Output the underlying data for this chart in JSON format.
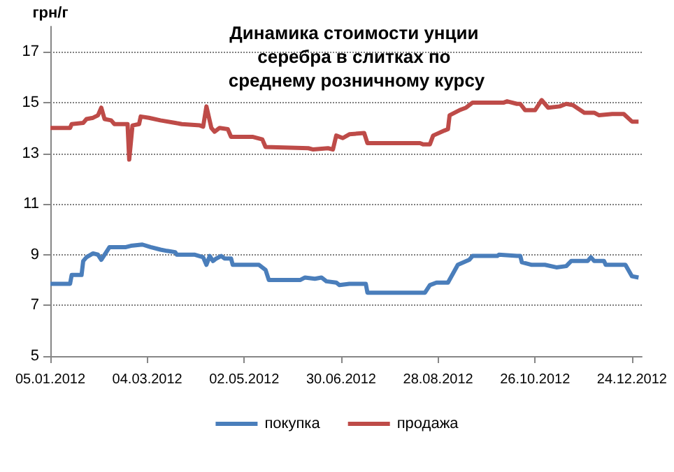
{
  "chart_data": {
    "type": "line",
    "title": "Динамика стоимости унции серебра в слитках по среднему розничному курсу",
    "ylabel": "грн/г",
    "xlim": [
      "2012-01-05",
      "2012-12-30"
    ],
    "xticks": [
      {
        "value": "2012-01-05",
        "label": "05.01.2012"
      },
      {
        "value": "2012-03-04",
        "label": "04.03.2012"
      },
      {
        "value": "2012-05-02",
        "label": "02.05.2012"
      },
      {
        "value": "2012-06-30",
        "label": "30.06.2012"
      },
      {
        "value": "2012-08-28",
        "label": "28.08.2012"
      },
      {
        "value": "2012-10-26",
        "label": "26.10.2012"
      },
      {
        "value": "2012-12-24",
        "label": "24.12.2012"
      }
    ],
    "ylim": [
      5,
      18
    ],
    "yticks": [
      5,
      7,
      9,
      11,
      13,
      15,
      17
    ],
    "grid": "y",
    "legend": "bottom",
    "marker": "none",
    "line_style": "solid",
    "series": [
      {
        "name": "покупка",
        "color": "#4a7ebb",
        "x": [
          "2012-01-05",
          "2012-01-17",
          "2012-01-18",
          "2012-01-24",
          "2012-01-25",
          "2012-01-27",
          "2012-01-31",
          "2012-02-03",
          "2012-02-05",
          "2012-02-09",
          "2012-02-10",
          "2012-02-20",
          "2012-02-23",
          "2012-03-01",
          "2012-03-06",
          "2012-03-12",
          "2012-03-16",
          "2012-03-21",
          "2012-03-22",
          "2012-04-02",
          "2012-04-07",
          "2012-04-09",
          "2012-04-11",
          "2012-04-13",
          "2012-04-15",
          "2012-04-18",
          "2012-04-20",
          "2012-04-24",
          "2012-04-25",
          "2012-05-11",
          "2012-05-15",
          "2012-05-17",
          "2012-06-05",
          "2012-06-08",
          "2012-06-14",
          "2012-06-18",
          "2012-06-21",
          "2012-06-27",
          "2012-06-29",
          "2012-07-05",
          "2012-07-15",
          "2012-07-16",
          "2012-08-20",
          "2012-08-23",
          "2012-08-27",
          "2012-09-03",
          "2012-09-09",
          "2012-09-16",
          "2012-09-18",
          "2012-10-03",
          "2012-10-04",
          "2012-10-15",
          "2012-10-17",
          "2012-10-18",
          "2012-10-24",
          "2012-11-01",
          "2012-11-08",
          "2012-11-14",
          "2012-11-17",
          "2012-11-27",
          "2012-11-29",
          "2012-12-01",
          "2012-12-07",
          "2012-12-08",
          "2012-12-20",
          "2012-12-24",
          "2012-12-28"
        ],
        "values": [
          7.85,
          7.85,
          8.2,
          8.2,
          8.75,
          8.9,
          9.05,
          9.0,
          8.8,
          9.2,
          9.3,
          9.3,
          9.35,
          9.4,
          9.3,
          9.2,
          9.15,
          9.1,
          9.0,
          9.0,
          8.9,
          8.6,
          8.95,
          8.75,
          8.85,
          8.95,
          8.85,
          8.85,
          8.6,
          8.6,
          8.4,
          8.0,
          8.0,
          8.1,
          8.05,
          8.1,
          7.95,
          7.9,
          7.8,
          7.85,
          7.85,
          7.5,
          7.5,
          7.8,
          7.9,
          7.9,
          8.6,
          8.8,
          8.95,
          8.95,
          9.0,
          8.95,
          8.95,
          8.7,
          8.6,
          8.6,
          8.5,
          8.55,
          8.75,
          8.75,
          8.9,
          8.75,
          8.75,
          8.6,
          8.6,
          8.15,
          8.1
        ]
      },
      {
        "name": "продажа",
        "color": "#be4b48",
        "x": [
          "2012-01-05",
          "2012-01-17",
          "2012-01-18",
          "2012-01-25",
          "2012-01-27",
          "2012-01-31",
          "2012-02-03",
          "2012-02-05",
          "2012-02-07",
          "2012-02-11",
          "2012-02-13",
          "2012-02-21",
          "2012-02-22",
          "2012-02-24",
          "2012-02-28",
          "2012-02-29",
          "2012-03-05",
          "2012-03-12",
          "2012-03-21",
          "2012-03-25",
          "2012-04-05",
          "2012-04-07",
          "2012-04-09",
          "2012-04-12",
          "2012-04-14",
          "2012-04-17",
          "2012-04-22",
          "2012-04-24",
          "2012-05-07",
          "2012-05-13",
          "2012-05-15",
          "2012-06-10",
          "2012-06-13",
          "2012-06-22",
          "2012-06-25",
          "2012-06-27",
          "2012-07-01",
          "2012-07-05",
          "2012-07-14",
          "2012-07-16",
          "2012-08-17",
          "2012-08-19",
          "2012-08-23",
          "2012-08-25",
          "2012-09-01",
          "2012-09-03",
          "2012-09-04",
          "2012-09-10",
          "2012-09-14",
          "2012-09-18",
          "2012-10-07",
          "2012-10-09",
          "2012-10-15",
          "2012-10-17",
          "2012-10-20",
          "2012-10-26",
          "2012-10-30",
          "2012-11-03",
          "2012-11-10",
          "2012-11-14",
          "2012-11-18",
          "2012-11-25",
          "2012-12-01",
          "2012-12-04",
          "2012-12-12",
          "2012-12-19",
          "2012-12-24",
          "2012-12-28"
        ],
        "values": [
          14.0,
          14.0,
          14.15,
          14.2,
          14.35,
          14.4,
          14.5,
          14.8,
          14.35,
          14.3,
          14.15,
          14.15,
          12.75,
          14.1,
          14.15,
          14.45,
          14.4,
          14.3,
          14.2,
          14.15,
          14.1,
          14.05,
          14.85,
          14.0,
          13.85,
          14.0,
          13.95,
          13.65,
          13.65,
          13.55,
          13.25,
          13.2,
          13.15,
          13.2,
          13.15,
          13.7,
          13.6,
          13.75,
          13.8,
          13.4,
          13.4,
          13.35,
          13.35,
          13.7,
          13.9,
          13.95,
          14.5,
          14.7,
          14.8,
          15.0,
          15.0,
          15.05,
          14.95,
          14.95,
          14.7,
          14.7,
          15.1,
          14.8,
          14.85,
          14.95,
          14.9,
          14.6,
          14.6,
          14.5,
          14.55,
          14.55,
          14.25,
          14.25
        ]
      }
    ]
  }
}
